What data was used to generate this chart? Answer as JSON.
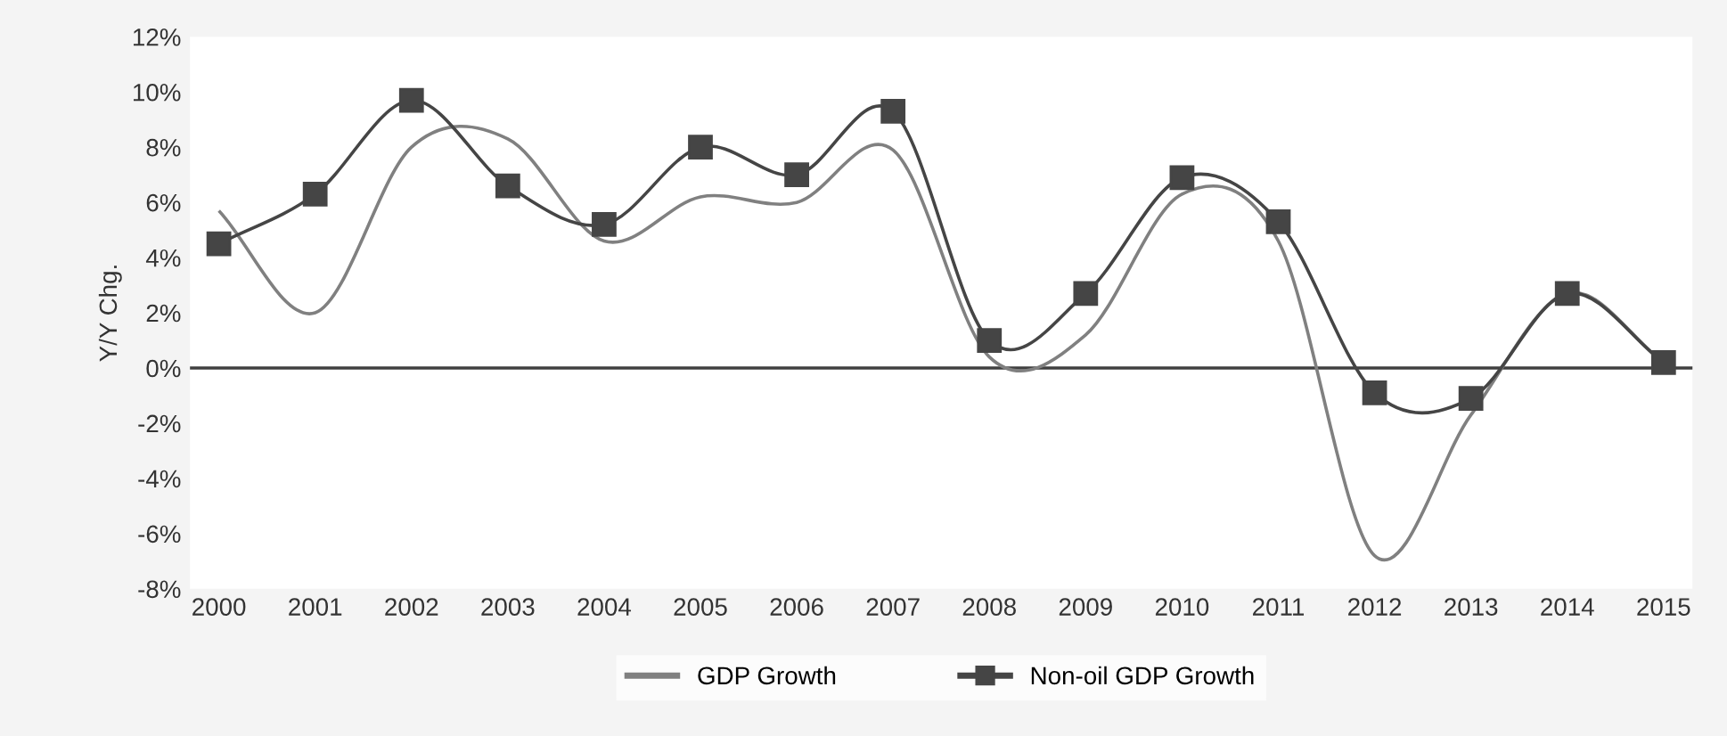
{
  "chart_data": {
    "type": "line",
    "ylabel": "Y/Y Chg.",
    "categories": [
      "2000",
      "2001",
      "2002",
      "2003",
      "2004",
      "2005",
      "2006",
      "2007",
      "2008",
      "2009",
      "2010",
      "2011",
      "2012",
      "2013",
      "2014",
      "2015"
    ],
    "series": [
      {
        "name": "GDP Growth",
        "color": "#808080",
        "marker": "none",
        "values": [
          5.7,
          2.0,
          8.0,
          8.3,
          4.6,
          6.2,
          6.0,
          7.9,
          0.4,
          1.2,
          6.3,
          4.6,
          -6.8,
          -1.7,
          2.7,
          0.2
        ]
      },
      {
        "name": "Non-oil GDP Growth",
        "color": "#454545",
        "marker": "square",
        "values": [
          4.5,
          6.3,
          9.7,
          6.6,
          5.2,
          8.0,
          7.0,
          9.3,
          1.0,
          2.7,
          6.9,
          5.3,
          -0.9,
          -1.1,
          2.7,
          0.2
        ]
      }
    ],
    "ylim": [
      -8,
      12
    ],
    "yticks": [
      {
        "value": -8,
        "label": "-8%"
      },
      {
        "value": -6,
        "label": "-6%"
      },
      {
        "value": -4,
        "label": "-4%"
      },
      {
        "value": -2,
        "label": "-2%"
      },
      {
        "value": 0,
        "label": "0%"
      },
      {
        "value": 2,
        "label": "2%"
      },
      {
        "value": 4,
        "label": "4%"
      },
      {
        "value": 6,
        "label": "6%"
      },
      {
        "value": 8,
        "label": "8%"
      },
      {
        "value": 10,
        "label": "10%"
      },
      {
        "value": 12,
        "label": "12%"
      }
    ],
    "ref_lines": [
      {
        "axis": "y",
        "value": 0,
        "color": "#404040"
      }
    ],
    "grid": false,
    "legend": "bottom"
  }
}
